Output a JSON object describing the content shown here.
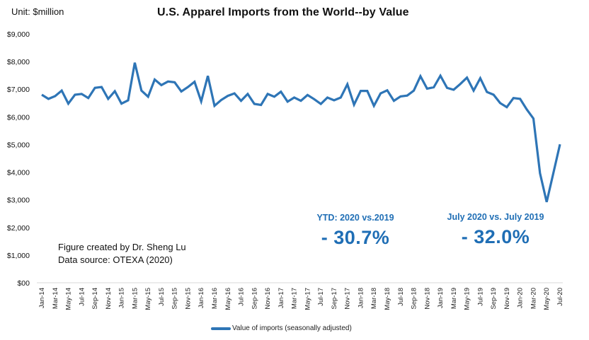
{
  "header": {
    "unit_label": "Unit: $million",
    "title": "U.S. Apparel Imports from the World--by Value"
  },
  "credit": {
    "line1": "Figure created by Dr. Sheng Lu",
    "line2": "Data source: OTEXA (2020)"
  },
  "annotations": [
    {
      "label": "YTD: 2020  vs.2019",
      "value": "- 30.7%"
    },
    {
      "label": "July 2020  vs. July 2019",
      "value": "- 32.0%"
    }
  ],
  "colors": {
    "line": "#2e75b6",
    "annotation": "#1f6eb5",
    "axis": "#d9d9d9"
  },
  "chart_data": {
    "type": "line",
    "title": "U.S. Apparel Imports from the World--by Value",
    "xlabel": "",
    "ylabel": "Unit: $million",
    "ylim": [
      0,
      9000
    ],
    "ytick_step": 1000,
    "ytick_labels": [
      "$00",
      "$1,000",
      "$2,000",
      "$3,000",
      "$4,000",
      "$5,000",
      "$6,000",
      "$7,000",
      "$8,000",
      "$9,000"
    ],
    "grid": false,
    "legend_position": "bottom",
    "x": [
      "Jan-14",
      "Feb-14",
      "Mar-14",
      "Apr-14",
      "May-14",
      "Jun-14",
      "Jul-14",
      "Aug-14",
      "Sep-14",
      "Oct-14",
      "Nov-14",
      "Dec-14",
      "Jan-15",
      "Feb-15",
      "Mar-15",
      "Apr-15",
      "May-15",
      "Jun-15",
      "Jul-15",
      "Aug-15",
      "Sep-15",
      "Oct-15",
      "Nov-15",
      "Dec-15",
      "Jan-16",
      "Feb-16",
      "Mar-16",
      "Apr-16",
      "May-16",
      "Jun-16",
      "Jul-16",
      "Aug-16",
      "Sep-16",
      "Oct-16",
      "Nov-16",
      "Dec-16",
      "Jan-17",
      "Feb-17",
      "Mar-17",
      "Apr-17",
      "May-17",
      "Jun-17",
      "Jul-17",
      "Aug-17",
      "Sep-17",
      "Oct-17",
      "Nov-17",
      "Dec-17",
      "Jan-18",
      "Feb-18",
      "Mar-18",
      "Apr-18",
      "May-18",
      "Jun-18",
      "Jul-18",
      "Aug-18",
      "Sep-18",
      "Oct-18",
      "Nov-18",
      "Dec-18",
      "Jan-19",
      "Feb-19",
      "Mar-19",
      "Apr-19",
      "May-19",
      "Jun-19",
      "Jul-19",
      "Aug-19",
      "Sep-19",
      "Oct-19",
      "Nov-19",
      "Dec-19",
      "Jan-20",
      "Feb-20",
      "Mar-20",
      "Apr-20",
      "May-20",
      "Jun-20",
      "Jul-20"
    ],
    "xtick_labels": [
      "Jan-14",
      "Mar-14",
      "May-14",
      "Jul-14",
      "Sep-14",
      "Nov-14",
      "Jan-15",
      "Mar-15",
      "May-15",
      "Jul-15",
      "Sep-15",
      "Nov-15",
      "Jan-16",
      "Mar-16",
      "May-16",
      "Jul-16",
      "Sep-16",
      "Nov-16",
      "Jan-17",
      "Mar-17",
      "May-17",
      "Jul-17",
      "Sep-17",
      "Nov-17",
      "Jan-18",
      "Mar-18",
      "May-18",
      "Jul-18",
      "Sep-18",
      "Nov-18",
      "Jan-19",
      "Mar-19",
      "May-19",
      "Jul-19",
      "Sep-19",
      "Nov-19",
      "Jan-20",
      "Mar-20",
      "May-20",
      "Jul-20"
    ],
    "series": [
      {
        "name": "Value of imports (seasonally adjusted)",
        "values": [
          6800,
          6650,
          6750,
          6950,
          6480,
          6800,
          6830,
          6680,
          7050,
          7080,
          6650,
          6930,
          6480,
          6600,
          7960,
          6950,
          6730,
          7350,
          7150,
          7280,
          7250,
          6920,
          7080,
          7270,
          6560,
          7480,
          6400,
          6610,
          6760,
          6850,
          6580,
          6830,
          6470,
          6430,
          6830,
          6730,
          6910,
          6550,
          6700,
          6580,
          6790,
          6640,
          6470,
          6700,
          6600,
          6700,
          7180,
          6440,
          6940,
          6940,
          6400,
          6850,
          6960,
          6580,
          6740,
          6770,
          6950,
          7470,
          7020,
          7070,
          7490,
          7050,
          6980,
          7190,
          7420,
          6950,
          7400,
          6900,
          6800,
          6500,
          6350,
          6680,
          6650,
          6270,
          5940,
          3960,
          2920,
          3960,
          5010
        ]
      }
    ]
  }
}
